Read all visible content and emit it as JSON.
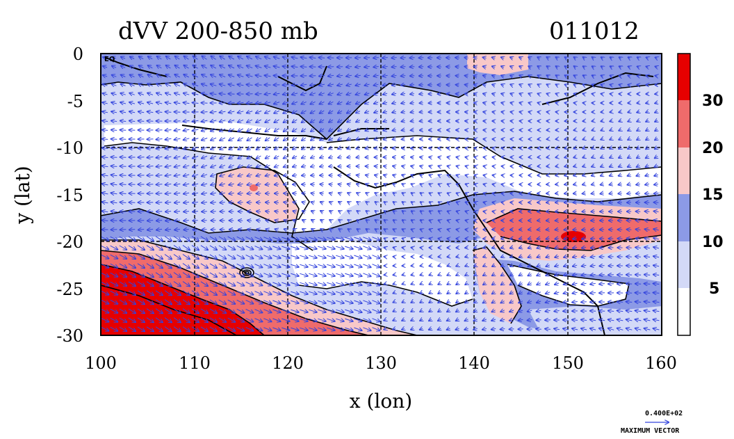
{
  "header": {
    "title": "dVV 200-850 mb",
    "date": "011012"
  },
  "axes": {
    "xlabel": "x (lon)",
    "ylabel": "y (lat)",
    "x_ticks": [
      "100",
      "110",
      "120",
      "130",
      "140",
      "150",
      "160"
    ],
    "y_ticks": [
      "0",
      "-5",
      "-10",
      "-15",
      "-20",
      "-25",
      "-30"
    ],
    "corner_mark": "EQ"
  },
  "colorbar": {
    "labels": [
      "30",
      "20",
      "15",
      "10",
      "5"
    ],
    "colors": [
      "#e60000",
      "#ef6b6b",
      "#f8c8c8",
      "#8c9ae6",
      "#d3d9f7",
      "#ffffff"
    ]
  },
  "vector_key": {
    "value": "0.400E+02",
    "label": "MAXIMUM VECTOR"
  },
  "chart_data": {
    "type": "heatmap",
    "title": "dVV 200-850 mb",
    "subtitle": "011012",
    "xlabel": "x (lon)",
    "ylabel": "y (lat)",
    "xlim": [
      100,
      160
    ],
    "ylim": [
      -30,
      0
    ],
    "x_ticks": [
      100,
      110,
      120,
      130,
      140,
      150,
      160
    ],
    "y_ticks": [
      0,
      -5,
      -10,
      -15,
      -20,
      -25,
      -30
    ],
    "grid": true,
    "levels": [
      5,
      10,
      15,
      20,
      30
    ],
    "level_colors": [
      "#ffffff",
      "#d3d9f7",
      "#8c9ae6",
      "#f8c8c8",
      "#ef6b6b",
      "#e60000"
    ],
    "overlay": "wind vectors and coastlines",
    "max_vector": "0.400E+02"
  }
}
